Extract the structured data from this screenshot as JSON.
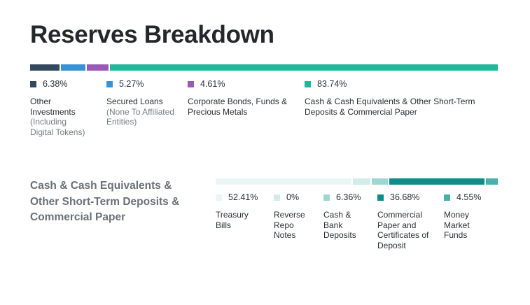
{
  "title": "Reserves Breakdown",
  "section_title": "Cash & Cash Equivalents & Other Short-Term Deposits & Commercial Paper",
  "chart_data": [
    {
      "type": "bar",
      "stacked": true,
      "orientation": "horizontal",
      "categories": [
        "Other Investments (Including Digital Tokens)",
        "Secured Loans (None To Affiliated Entities)",
        "Corporate Bonds, Funds & Precious Metals",
        "Cash & Cash Equivalents & Other Short-Term Deposits & Commercial Paper"
      ],
      "values": [
        6.38,
        5.27,
        4.61,
        83.74
      ],
      "value_labels": [
        "6.38%",
        "5.27%",
        "4.61%",
        "83.74%"
      ],
      "colors": [
        "#34495e",
        "#3a92d6",
        "#9b59b6",
        "#1fb89a"
      ],
      "legend": [
        {
          "pct": "6.38%",
          "label": "Other Investments",
          "sub": "(Including Digital Tokens)"
        },
        {
          "pct": "5.27%",
          "label": "Secured Loans",
          "sub": "(None To Affiliated Entities)"
        },
        {
          "pct": "4.61%",
          "label": "Corporate Bonds, Funds & Precious Metals",
          "sub": ""
        },
        {
          "pct": "83.74%",
          "label": "Cash & Cash Equivalents & Other Short-Term Deposits & Commercial Paper",
          "sub": ""
        }
      ]
    },
    {
      "type": "bar",
      "stacked": true,
      "orientation": "horizontal",
      "categories": [
        "Treasury Bills",
        "Reverse Repo Notes",
        "Cash & Bank Deposits",
        "Commercial Paper and Certificates of Deposit",
        "Money Market Funds"
      ],
      "values": [
        52.41,
        0,
        6.36,
        36.68,
        4.55
      ],
      "value_labels": [
        "52.41%",
        "0%",
        "6.36%",
        "36.68%",
        "4.55%"
      ],
      "colors": [
        "#e9f6f3",
        "#d2ecea",
        "#9ed6d4",
        "#0e8c89",
        "#4aafac"
      ],
      "legend": [
        {
          "pct": "52.41%",
          "label": "Treasury Bills"
        },
        {
          "pct": "0%",
          "label": "Reverse Repo Notes"
        },
        {
          "pct": "6.36%",
          "label": "Cash & Bank Deposits"
        },
        {
          "pct": "36.68%",
          "label": "Commercial Paper and Certificates of Deposit"
        },
        {
          "pct": "4.55%",
          "label": "Money Market Funds"
        }
      ]
    }
  ]
}
